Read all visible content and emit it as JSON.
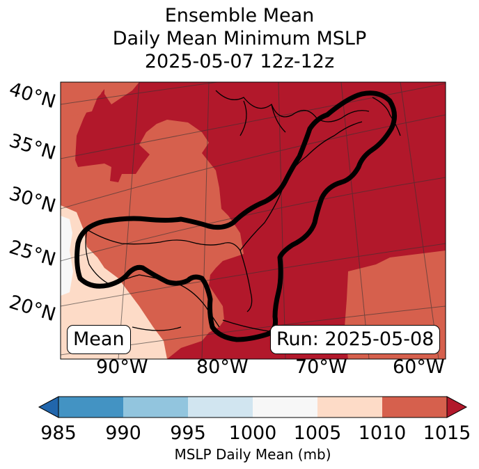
{
  "title": {
    "line1": "Ensemble Mean",
    "line2": "Daily Mean Minimum MSLP",
    "line3": "2025-05-07 12z-12z"
  },
  "map": {
    "lat_labels": [
      "40°N",
      "35°N",
      "30°N",
      "25°N",
      "20°N"
    ],
    "lon_labels": [
      "90°W",
      "80°W",
      "70°W",
      "60°W"
    ],
    "left_box": "Mean",
    "right_box": "Run: 2025-05-08"
  },
  "colorbar": {
    "label": "MSLP Daily Mean (mb)",
    "ticks": [
      "985",
      "990",
      "995",
      "1000",
      "1005",
      "1010",
      "1015"
    ],
    "colors": [
      "#2166ac",
      "#4393c3",
      "#92c5de",
      "#d1e5f0",
      "#f7f7f7",
      "#fddbc7",
      "#d6604d",
      "#b2182b"
    ]
  },
  "colors": {
    "mslp_1005_1010": "#fddbc7",
    "mslp_1010_1015": "#d6604d",
    "mslp_above_1015": "#b2182b",
    "mslp_1000_1005": "#f7f7f7"
  }
}
